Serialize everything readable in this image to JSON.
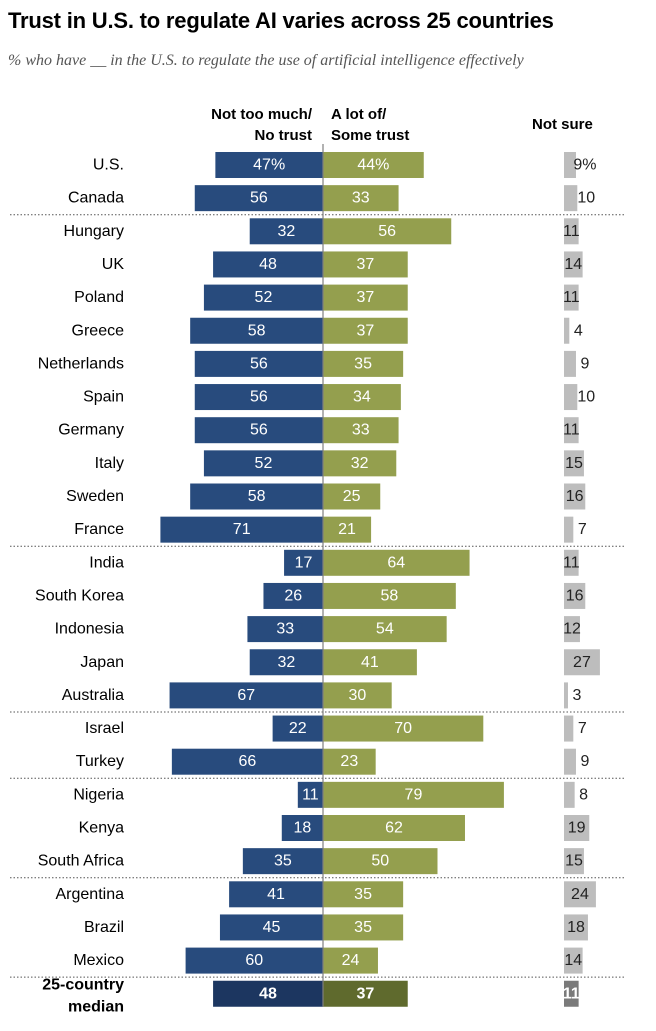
{
  "title": "Trust in U.S. to regulate AI varies across 25 countries",
  "subtitle": "% who have __ in the U.S. to regulate the use of artificial intelligence effectively",
  "colors": {
    "negative": "#284b7d",
    "positive": "#949f4e",
    "not_sure": "#bdbdbd",
    "median_negative": "#1c3660",
    "median_positive": "#5f6a2d",
    "median_not_sure": "#7a7a7a"
  },
  "chart_data": {
    "type": "bar",
    "orientation": "horizontal-diverging",
    "series": [
      {
        "key": "negative",
        "name": "Not too much/ No trust",
        "name_lines": [
          "Not too much/",
          "No trust"
        ]
      },
      {
        "key": "positive",
        "name": "A lot of/ Some trust",
        "name_lines": [
          "A lot of/",
          "Some trust"
        ]
      },
      {
        "key": "not_sure",
        "name": "Not sure",
        "name_lines": [
          "Not sure"
        ]
      }
    ],
    "rows": [
      {
        "country": "U.S.",
        "negative": 47,
        "positive": 44,
        "not_sure": 9,
        "negative_label": "47%",
        "positive_label": "44%",
        "not_sure_label": "9%",
        "group": 0
      },
      {
        "country": "Canada",
        "negative": 56,
        "positive": 33,
        "not_sure": 10,
        "negative_label": "56",
        "positive_label": "33",
        "not_sure_label": "10",
        "group": 0
      },
      {
        "country": "Hungary",
        "negative": 32,
        "positive": 56,
        "not_sure": 11,
        "negative_label": "32",
        "positive_label": "56",
        "not_sure_label": "11",
        "group": 1
      },
      {
        "country": "UK",
        "negative": 48,
        "positive": 37,
        "not_sure": 14,
        "negative_label": "48",
        "positive_label": "37",
        "not_sure_label": "14",
        "group": 1
      },
      {
        "country": "Poland",
        "negative": 52,
        "positive": 37,
        "not_sure": 11,
        "negative_label": "52",
        "positive_label": "37",
        "not_sure_label": "11",
        "group": 1
      },
      {
        "country": "Greece",
        "negative": 58,
        "positive": 37,
        "not_sure": 4,
        "negative_label": "58",
        "positive_label": "37",
        "not_sure_label": "4",
        "group": 1
      },
      {
        "country": "Netherlands",
        "negative": 56,
        "positive": 35,
        "not_sure": 9,
        "negative_label": "56",
        "positive_label": "35",
        "not_sure_label": "9",
        "group": 1
      },
      {
        "country": "Spain",
        "negative": 56,
        "positive": 34,
        "not_sure": 10,
        "negative_label": "56",
        "positive_label": "34",
        "not_sure_label": "10",
        "group": 1
      },
      {
        "country": "Germany",
        "negative": 56,
        "positive": 33,
        "not_sure": 11,
        "negative_label": "56",
        "positive_label": "33",
        "not_sure_label": "11",
        "group": 1
      },
      {
        "country": "Italy",
        "negative": 52,
        "positive": 32,
        "not_sure": 15,
        "negative_label": "52",
        "positive_label": "32",
        "not_sure_label": "15",
        "group": 1
      },
      {
        "country": "Sweden",
        "negative": 58,
        "positive": 25,
        "not_sure": 16,
        "negative_label": "58",
        "positive_label": "25",
        "not_sure_label": "16",
        "group": 1
      },
      {
        "country": "France",
        "negative": 71,
        "positive": 21,
        "not_sure": 7,
        "negative_label": "71",
        "positive_label": "21",
        "not_sure_label": "7",
        "group": 1
      },
      {
        "country": "India",
        "negative": 17,
        "positive": 64,
        "not_sure": 11,
        "negative_label": "17",
        "positive_label": "64",
        "not_sure_label": "11",
        "group": 2
      },
      {
        "country": "South Korea",
        "negative": 26,
        "positive": 58,
        "not_sure": 16,
        "negative_label": "26",
        "positive_label": "58",
        "not_sure_label": "16",
        "group": 2
      },
      {
        "country": "Indonesia",
        "negative": 33,
        "positive": 54,
        "not_sure": 12,
        "negative_label": "33",
        "positive_label": "54",
        "not_sure_label": "12",
        "group": 2
      },
      {
        "country": "Japan",
        "negative": 32,
        "positive": 41,
        "not_sure": 27,
        "negative_label": "32",
        "positive_label": "41",
        "not_sure_label": "27",
        "group": 2
      },
      {
        "country": "Australia",
        "negative": 67,
        "positive": 30,
        "not_sure": 3,
        "negative_label": "67",
        "positive_label": "30",
        "not_sure_label": "3",
        "group": 2
      },
      {
        "country": "Israel",
        "negative": 22,
        "positive": 70,
        "not_sure": 7,
        "negative_label": "22",
        "positive_label": "70",
        "not_sure_label": "7",
        "group": 3
      },
      {
        "country": "Turkey",
        "negative": 66,
        "positive": 23,
        "not_sure": 9,
        "negative_label": "66",
        "positive_label": "23",
        "not_sure_label": "9",
        "group": 3
      },
      {
        "country": "Nigeria",
        "negative": 11,
        "positive": 79,
        "not_sure": 8,
        "negative_label": "11",
        "positive_label": "79",
        "not_sure_label": "8",
        "group": 4
      },
      {
        "country": "Kenya",
        "negative": 18,
        "positive": 62,
        "not_sure": 19,
        "negative_label": "18",
        "positive_label": "62",
        "not_sure_label": "19",
        "group": 4
      },
      {
        "country": "South Africa",
        "negative": 35,
        "positive": 50,
        "not_sure": 15,
        "negative_label": "35",
        "positive_label": "50",
        "not_sure_label": "15",
        "group": 4
      },
      {
        "country": "Argentina",
        "negative": 41,
        "positive": 35,
        "not_sure": 24,
        "negative_label": "41",
        "positive_label": "35",
        "not_sure_label": "24",
        "group": 5
      },
      {
        "country": "Brazil",
        "negative": 45,
        "positive": 35,
        "not_sure": 18,
        "negative_label": "45",
        "positive_label": "35",
        "not_sure_label": "18",
        "group": 5
      },
      {
        "country": "Mexico",
        "negative": 60,
        "positive": 24,
        "not_sure": 14,
        "negative_label": "60",
        "positive_label": "24",
        "not_sure_label": "14",
        "group": 5
      }
    ],
    "median": {
      "country_lines": [
        "25-country",
        "median"
      ],
      "negative": 48,
      "positive": 37,
      "not_sure": 11,
      "negative_label": "48",
      "positive_label": "37",
      "not_sure_label": "11"
    },
    "unit": "%"
  }
}
